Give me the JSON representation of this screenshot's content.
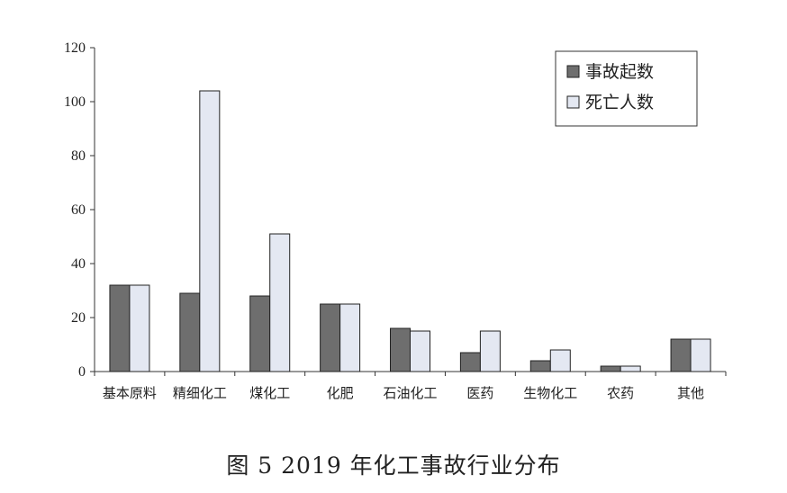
{
  "chart_data": {
    "type": "bar",
    "categories": [
      "基本原料",
      "精细化工",
      "煤化工",
      "化肥",
      "石油化工",
      "医药",
      "生物化工",
      "农药",
      "其他"
    ],
    "series": [
      {
        "name": "事故起数",
        "values": [
          32,
          29,
          28,
          25,
          16,
          7,
          4,
          2,
          12
        ],
        "color": "#6e6e6e"
      },
      {
        "name": "死亡人数",
        "values": [
          32,
          104,
          51,
          25,
          15,
          15,
          8,
          2,
          12
        ],
        "color": "#e4e8f2"
      }
    ],
    "ylim": [
      0,
      120
    ],
    "yticks": [
      "0",
      "20",
      "40",
      "60",
      "80",
      "100",
      "120"
    ],
    "legend_position": "top-right",
    "grid": false
  },
  "caption": "图 5   2019 年化工事故行业分布"
}
